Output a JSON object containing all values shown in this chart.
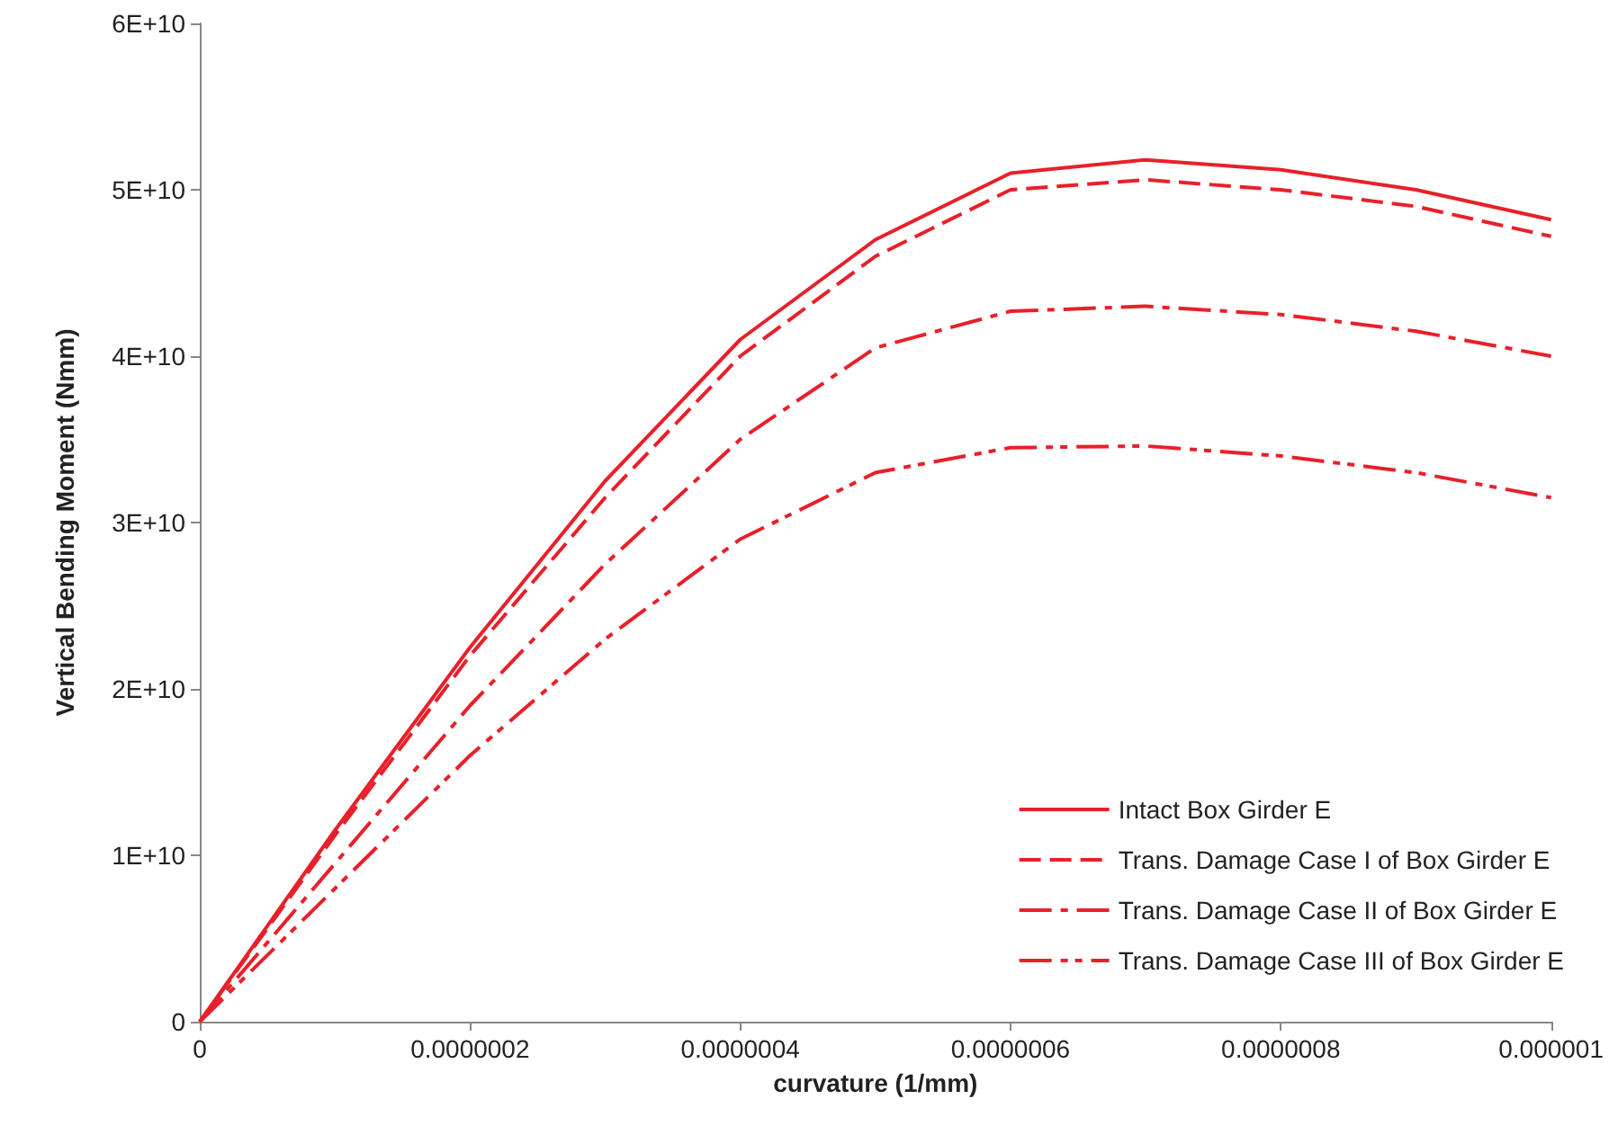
{
  "chart_data": {
    "type": "line",
    "xlabel": "curvature (1/mm)",
    "ylabel": "Vertical Bending Moment (Nmm)",
    "x": [
      0,
      1e-07,
      2e-07,
      3e-07,
      4e-07,
      5e-07,
      6e-07,
      7e-07,
      8e-07,
      9e-07,
      1e-06
    ],
    "xlim": [
      0,
      1e-06
    ],
    "xticks": [
      0,
      {
        "value": 2e-07,
        "label": "0.0000002"
      },
      {
        "value": 4e-07,
        "label": "0.0000004"
      },
      {
        "value": 6e-07,
        "label": "0.0000006"
      },
      {
        "value": 8e-07,
        "label": "0.0000008"
      },
      {
        "value": 1e-06,
        "label": "0.000001"
      }
    ],
    "ylim": [
      0,
      60000000000.0
    ],
    "yticks": [
      0,
      {
        "value": 10000000000.0,
        "label": "1E+10"
      },
      {
        "value": 20000000000.0,
        "label": "2E+10"
      },
      {
        "value": 30000000000.0,
        "label": "3E+10"
      },
      {
        "value": 40000000000.0,
        "label": "4E+10"
      },
      {
        "value": 50000000000.0,
        "label": "5E+10"
      },
      {
        "value": 60000000000.0,
        "label": "6E+10"
      }
    ],
    "grid": false,
    "legend": "bottom right",
    "marker": "none",
    "series": [
      {
        "name": "Intact Box Girder E",
        "color": "#e8202a",
        "line_style": "solid",
        "values": [
          0,
          11500000000.0,
          22500000000.0,
          32500000000.0,
          41000000000.0,
          47000000000.0,
          51000000000.0,
          51800000000.0,
          51200000000.0,
          50000000000.0,
          48200000000.0
        ]
      },
      {
        "name": "Trans. Damage Case I of Box Girder E",
        "color": "#e8202a",
        "line_style": "dashed",
        "values": [
          0,
          11200000000.0,
          22000000000.0,
          31500000000.0,
          40000000000.0,
          46000000000.0,
          50000000000.0,
          50600000000.0,
          50000000000.0,
          49000000000.0,
          47200000000.0
        ]
      },
      {
        "name": "Trans. Damage Case II of Box Girder E",
        "color": "#e8202a",
        "line_style": "dashdot",
        "values": [
          0,
          9500000000.0,
          19000000000.0,
          27500000000.0,
          35000000000.0,
          40500000000.0,
          42700000000.0,
          43000000000.0,
          42500000000.0,
          41500000000.0,
          40000000000.0
        ]
      },
      {
        "name": "Trans. Damage Case III of Box Girder E",
        "color": "#e8202a",
        "line_style": "dashdotdot",
        "values": [
          0,
          8000000000.0,
          16000000000.0,
          23000000000.0,
          29000000000.0,
          33000000000.0,
          34500000000.0,
          34600000000.0,
          34000000000.0,
          33000000000.0,
          31500000000.0
        ]
      }
    ]
  }
}
